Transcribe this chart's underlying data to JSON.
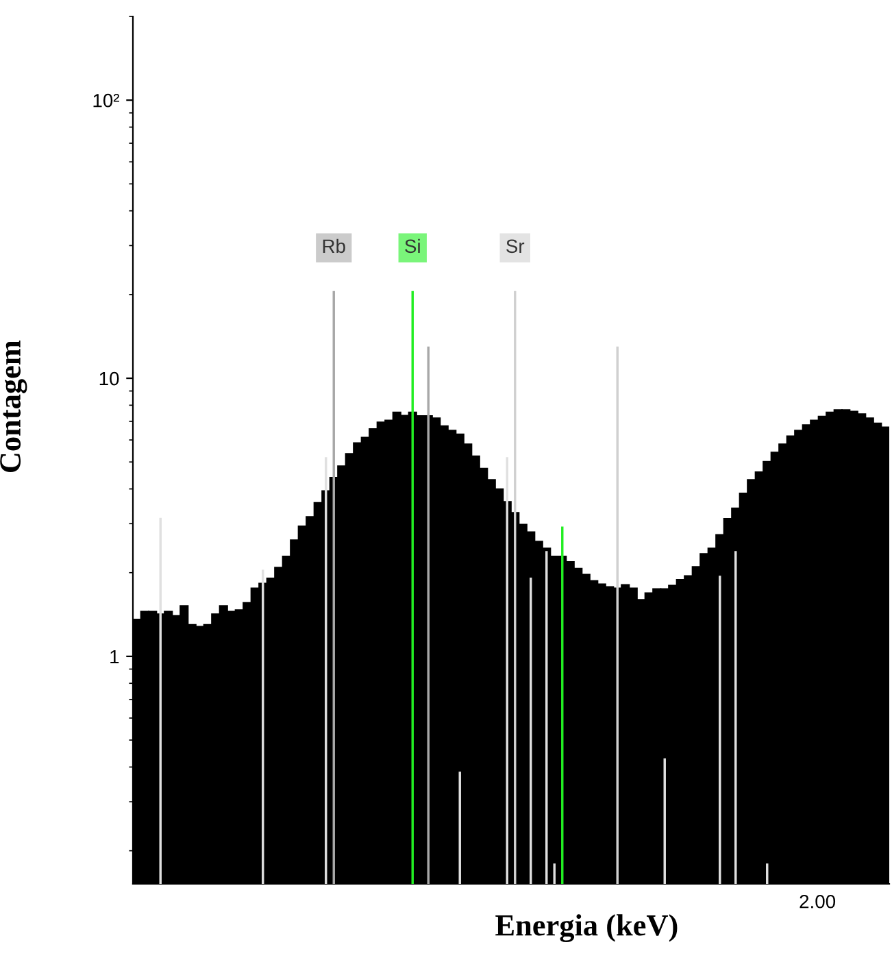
{
  "chart_data": {
    "type": "bar",
    "xlabel": "Energia (keV)",
    "ylabel": "Contagem",
    "color": "#000000",
    "categories": [
      null,
      null,
      null,
      null,
      null,
      null,
      null,
      null,
      null,
      null,
      null,
      null,
      null,
      null,
      null,
      null,
      null,
      null,
      null,
      null,
      null,
      null,
      null,
      null,
      null,
      null,
      null,
      null,
      null,
      null,
      null,
      null,
      null,
      null,
      null,
      null,
      null,
      null,
      null,
      null,
      null,
      null,
      null,
      null,
      null,
      null,
      null,
      null,
      null,
      null,
      null,
      null,
      null,
      null,
      null,
      null,
      null,
      null,
      null,
      null,
      null,
      null,
      null,
      null,
      null,
      null,
      null,
      null,
      null,
      null,
      null,
      null,
      null,
      null,
      null,
      null,
      null,
      null,
      null,
      null,
      null,
      null,
      null,
      null,
      null,
      null,
      null,
      null,
      null,
      null,
      null,
      null,
      null,
      null,
      null,
      null
    ],
    "values": [
      1.36,
      1.45,
      1.45,
      1.42,
      1.45,
      1.4,
      1.52,
      1.3,
      1.28,
      1.3,
      1.42,
      1.52,
      1.45,
      1.47,
      1.56,
      1.76,
      1.83,
      1.91,
      2.09,
      2.29,
      2.62,
      2.94,
      3.18,
      3.57,
      3.94,
      4.4,
      4.84,
      5.36,
      5.86,
      6.13,
      6.58,
      6.95,
      7.06,
      7.55,
      7.35,
      7.55,
      7.33,
      7.33,
      7.2,
      6.74,
      6.5,
      6.3,
      5.8,
      5.25,
      4.74,
      4.32,
      4.0,
      3.6,
      3.29,
      2.98,
      2.8,
      2.59,
      2.45,
      2.29,
      2.29,
      2.19,
      2.07,
      1.97,
      1.87,
      1.82,
      1.78,
      1.76,
      1.81,
      1.76,
      1.6,
      1.69,
      1.75,
      1.75,
      1.8,
      1.89,
      1.95,
      2.1,
      2.34,
      2.45,
      2.74,
      3.13,
      3.41,
      3.86,
      4.32,
      4.6,
      5.02,
      5.42,
      5.8,
      6.2,
      6.5,
      6.8,
      7.06,
      7.3,
      7.55,
      7.7,
      7.7,
      7.6,
      7.44,
      7.2,
      6.9,
      6.67
    ],
    "series": [
      {
        "type": "bar",
        "name": "Rb",
        "color": "#a8a8a8",
        "values": [
          null,
          null,
          null,
          null,
          null,
          null,
          null,
          null,
          null,
          null,
          null,
          null,
          null,
          null,
          null,
          null,
          null,
          null,
          null,
          null,
          null,
          null,
          null,
          null,
          null,
          20.6,
          null,
          null,
          null,
          null,
          null,
          null,
          null,
          null,
          null,
          null,
          null,
          13.0,
          null,
          null,
          null,
          null,
          null,
          null,
          null,
          null,
          null,
          null,
          null,
          null,
          null,
          null,
          null,
          null,
          null,
          null,
          null,
          null,
          null,
          null,
          null,
          null,
          null,
          null,
          null,
          null,
          null,
          null,
          null,
          null,
          null,
          null,
          null,
          null,
          null,
          null,
          null,
          null,
          null,
          null,
          null,
          null,
          null,
          null,
          null,
          null,
          null,
          null,
          null,
          null,
          null,
          null,
          null,
          null,
          null,
          null
        ]
      },
      {
        "type": "bar",
        "name": "Si",
        "color": "#22ee22",
        "values": [
          null,
          null,
          null,
          null,
          null,
          null,
          null,
          null,
          null,
          null,
          null,
          null,
          null,
          null,
          null,
          null,
          null,
          null,
          null,
          null,
          null,
          null,
          null,
          null,
          null,
          null,
          null,
          null,
          null,
          null,
          null,
          null,
          null,
          null,
          null,
          20.6,
          null,
          null,
          null,
          null,
          null,
          null,
          null,
          null,
          null,
          null,
          null,
          null,
          null,
          null,
          null,
          null,
          null,
          null,
          2.93,
          null,
          null,
          null,
          null,
          null,
          null,
          null,
          null,
          null,
          null,
          null,
          null,
          null,
          null,
          null,
          null,
          null,
          null,
          null,
          null,
          null,
          null,
          null,
          null,
          null,
          null,
          null,
          null,
          null,
          null,
          null,
          null,
          null,
          null,
          null,
          null,
          null,
          null,
          null,
          null,
          null
        ]
      },
      {
        "type": "bar",
        "name": "Sr",
        "color": "#d0d0d0",
        "values": [
          null,
          null,
          null,
          null,
          null,
          null,
          null,
          null,
          null,
          null,
          null,
          null,
          null,
          null,
          null,
          null,
          null,
          null,
          null,
          null,
          null,
          null,
          null,
          null,
          null,
          null,
          null,
          null,
          null,
          null,
          null,
          null,
          null,
          null,
          null,
          null,
          null,
          null,
          null,
          null,
          null,
          null,
          null,
          null,
          null,
          null,
          null,
          null,
          20.6,
          null,
          null,
          null,
          null,
          null,
          null,
          null,
          null,
          null,
          null,
          null,
          null,
          13.0,
          null,
          null,
          null,
          null,
          null,
          null,
          null,
          null,
          null,
          null,
          null,
          null,
          null,
          null,
          null,
          null,
          null,
          null,
          null,
          null,
          null,
          null,
          null,
          null,
          null,
          null,
          null,
          null,
          null,
          null,
          null,
          null,
          null,
          null
        ]
      },
      {
        "type": "bar",
        "color": "#e0e0e0",
        "values": [
          null,
          null,
          null,
          3.15,
          null,
          null,
          null,
          null,
          null,
          null,
          null,
          null,
          null,
          null,
          null,
          null,
          2.05,
          null,
          null,
          null,
          null,
          null,
          null,
          null,
          5.2,
          null,
          null,
          null,
          null,
          null,
          null,
          null,
          null,
          null,
          null,
          null,
          null,
          null,
          null,
          null,
          null,
          0.385,
          null,
          null,
          null,
          null,
          null,
          5.2,
          null,
          null,
          1.92,
          null,
          2.39,
          0.18,
          null,
          null,
          null,
          null,
          null,
          null,
          null,
          null,
          null,
          null,
          null,
          null,
          null,
          0.43,
          null,
          null,
          null,
          null,
          null,
          null,
          1.95,
          null,
          2.39,
          null,
          null,
          null,
          0.18,
          null,
          null,
          null,
          null,
          null,
          null,
          null,
          null,
          null,
          null,
          null,
          null,
          null,
          null,
          null
        ]
      }
    ],
    "annotations": [
      "2.00"
    ],
    "log": "y",
    "ylim": [
      0.152,
      200
    ],
    "yticks": [
      {
        "value": 1,
        "label": "1"
      },
      {
        "value": 10,
        "label": "10"
      },
      {
        "value": 100,
        "label": "10²"
      }
    ],
    "grid": false,
    "legend": false
  }
}
